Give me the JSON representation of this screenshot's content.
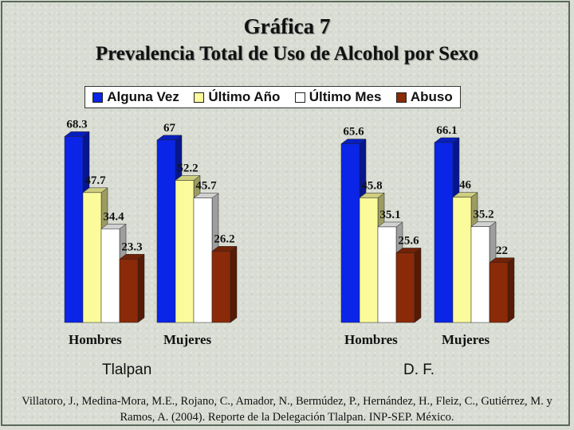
{
  "title": "Gráfica 7",
  "subtitle": "Prevalencia Total de Uso de Alcohol por Sexo",
  "legend": [
    "Alguna Vez",
    "Último Año",
    "Último Mes",
    "Abuso"
  ],
  "colors": {
    "Alguna Vez": "#0a24e8",
    "Último Año": "#fbfb9c",
    "Último Mes": "#ffffff",
    "Abuso": "#8b2a08"
  },
  "chart_data": {
    "type": "bar",
    "series_names": [
      "Alguna Vez",
      "Último Año",
      "Último Mes",
      "Abuso"
    ],
    "panels": [
      {
        "label": "Tlalpan",
        "categories": [
          "Hombres",
          "Mujeres"
        ],
        "values": [
          [
            68.3,
            47.7,
            34.4,
            23.3
          ],
          [
            67,
            52.2,
            45.7,
            26.2
          ]
        ]
      },
      {
        "label": "D. F.",
        "categories": [
          "Hombres",
          "Mujeres"
        ],
        "values": [
          [
            65.6,
            45.8,
            35.1,
            25.6
          ],
          [
            66.1,
            46,
            35.2,
            22
          ]
        ]
      }
    ],
    "value_labels": [
      [
        "68.3",
        "47.7",
        "34.4",
        "23.3"
      ],
      [
        "67",
        "52.2",
        "45.7",
        "26.2"
      ],
      [
        "65.6",
        "45.8",
        "35.1",
        "25.6"
      ],
      [
        "66.1",
        "46",
        "35.2",
        "22"
      ]
    ],
    "ylim": [
      0,
      70
    ]
  },
  "source": "Villatoro, J., Medina-Mora, M.E., Rojano, C., Amador, N., Bermúdez, P., Hernández, H., Fleiz, C., Gutiérrez, M. y Ramos, A. (2004). Reporte de la Delegación Tlalpan. INP-SEP. México."
}
